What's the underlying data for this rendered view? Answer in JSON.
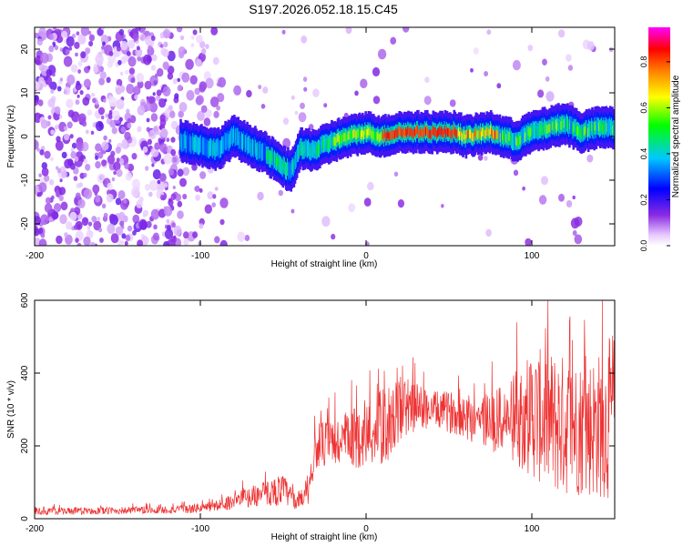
{
  "title": "S197.2026.052.18.15.C45",
  "chart_data": [
    {
      "type": "heatmap",
      "title": "S197.2026.052.18.15.C45",
      "xlabel": "Height of straight line (km)",
      "ylabel": "Frequency (Hz)",
      "xlim": [
        -200,
        150
      ],
      "ylim": [
        -25,
        25
      ],
      "xticks": [
        -200,
        -100,
        0,
        100
      ],
      "yticks": [
        -20,
        -10,
        0,
        10,
        20
      ],
      "grid": false,
      "ridge": {
        "description_points": [
          {
            "x": -110,
            "y": -1
          },
          {
            "x": -100,
            "y": -2
          },
          {
            "x": -90,
            "y": -3
          },
          {
            "x": -80,
            "y": 0
          },
          {
            "x": -70,
            "y": -2
          },
          {
            "x": -60,
            "y": -4
          },
          {
            "x": -50,
            "y": -7
          },
          {
            "x": -45,
            "y": -8
          },
          {
            "x": -40,
            "y": -3
          },
          {
            "x": -30,
            "y": -3
          },
          {
            "x": -20,
            "y": -1
          },
          {
            "x": -10,
            "y": 0
          },
          {
            "x": 0,
            "y": 1
          },
          {
            "x": 10,
            "y": 0
          },
          {
            "x": 20,
            "y": 1
          },
          {
            "x": 40,
            "y": 1
          },
          {
            "x": 55,
            "y": 1
          },
          {
            "x": 60,
            "y": 0
          },
          {
            "x": 75,
            "y": 1
          },
          {
            "x": 90,
            "y": -1
          },
          {
            "x": 100,
            "y": 1
          },
          {
            "x": 110,
            "y": 2
          },
          {
            "x": 120,
            "y": 3
          },
          {
            "x": 130,
            "y": 1
          },
          {
            "x": 140,
            "y": 2
          },
          {
            "x": 150,
            "y": 2
          }
        ]
      },
      "colorbar": {
        "label": "Normalized spectral amplitude",
        "range": [
          0,
          0.95
        ],
        "ticks": [
          0.0,
          0.2,
          0.4,
          0.6,
          0.8
        ],
        "tick_labels": [
          "0.0",
          "0.2",
          "0.4",
          "0.6",
          "0.8"
        ],
        "colormap": [
          "#ffffff",
          "#e6c8ff",
          "#8a2be2",
          "#0000ff",
          "#00c8ff",
          "#00ff00",
          "#ffff00",
          "#ff8000",
          "#ff0000",
          "#ff00ff"
        ]
      }
    },
    {
      "type": "line",
      "xlabel": "Height of straight line (km)",
      "ylabel": "SNR (10 * v/v)",
      "xlim": [
        -200,
        150
      ],
      "ylim": [
        0,
        600
      ],
      "xticks": [
        -200,
        -100,
        0,
        100
      ],
      "yticks": [
        0,
        200,
        400,
        600
      ],
      "grid": false,
      "color": "#ee3333",
      "series": [
        {
          "name": "SNR",
          "envelope": [
            {
              "x": -200,
              "mean": 20,
              "spread": 10
            },
            {
              "x": -150,
              "mean": 22,
              "spread": 10
            },
            {
              "x": -110,
              "mean": 25,
              "spread": 12
            },
            {
              "x": -90,
              "mean": 35,
              "spread": 15
            },
            {
              "x": -75,
              "mean": 55,
              "spread": 25
            },
            {
              "x": -60,
              "mean": 70,
              "spread": 35
            },
            {
              "x": -50,
              "mean": 80,
              "spread": 45
            },
            {
              "x": -42,
              "mean": 45,
              "spread": 20
            },
            {
              "x": -35,
              "mean": 80,
              "spread": 40
            },
            {
              "x": -30,
              "mean": 200,
              "spread": 60
            },
            {
              "x": -15,
              "mean": 210,
              "spread": 80
            },
            {
              "x": 0,
              "mean": 230,
              "spread": 90
            },
            {
              "x": 10,
              "mean": 250,
              "spread": 110
            },
            {
              "x": 25,
              "mean": 310,
              "spread": 80
            },
            {
              "x": 40,
              "mean": 300,
              "spread": 50
            },
            {
              "x": 55,
              "mean": 290,
              "spread": 60
            },
            {
              "x": 70,
              "mean": 270,
              "spread": 80
            },
            {
              "x": 85,
              "mean": 270,
              "spread": 100
            },
            {
              "x": 100,
              "mean": 290,
              "spread": 180
            },
            {
              "x": 115,
              "mean": 260,
              "spread": 200
            },
            {
              "x": 130,
              "mean": 250,
              "spread": 190
            },
            {
              "x": 145,
              "mean": 260,
              "spread": 210
            },
            {
              "x": 150,
              "mean": 300,
              "spread": 250
            }
          ]
        }
      ]
    }
  ]
}
